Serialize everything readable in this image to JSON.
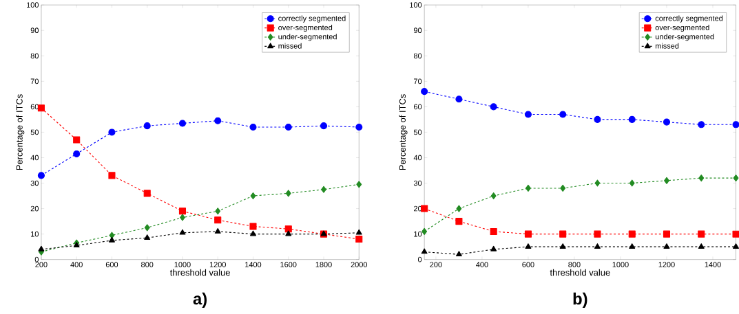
{
  "chart_data": [
    {
      "type": "line",
      "xlabel": "threshold value",
      "ylabel": "Percentage of ITCs",
      "annotations": [
        "a)"
      ],
      "x": [
        200,
        400,
        600,
        800,
        1000,
        1200,
        1400,
        1600,
        1800,
        2000
      ],
      "xlim": [
        200,
        2000
      ],
      "xticks": [
        200,
        400,
        600,
        800,
        1000,
        1200,
        1400,
        1600,
        1800,
        2000
      ],
      "ylim": [
        0,
        100
      ],
      "yticks": [
        0,
        10,
        20,
        30,
        40,
        50,
        60,
        70,
        80,
        90,
        100
      ],
      "legend": "top right",
      "grid": false,
      "line_style": "dashed",
      "series": [
        {
          "name": "correctly segmented",
          "color": "#0000ff",
          "marker": "circle",
          "values": [
            33,
            41.5,
            50,
            52.5,
            53.5,
            54.5,
            52,
            52,
            52.5,
            52
          ]
        },
        {
          "name": "over-segmented",
          "color": "#ff0000",
          "marker": "square",
          "values": [
            59.5,
            47,
            33,
            26,
            19,
            15.5,
            13,
            12,
            10,
            8
          ]
        },
        {
          "name": "under-segmented",
          "color": "#228b22",
          "marker": "diamond",
          "values": [
            3,
            6.5,
            9.5,
            12.5,
            16.5,
            19,
            25,
            26,
            27.5,
            29.5
          ]
        },
        {
          "name": "missed",
          "color": "#000000",
          "marker": "triangle",
          "values": [
            4,
            5.5,
            7.5,
            8.5,
            10.5,
            11,
            10,
            10,
            10,
            10.5
          ]
        }
      ]
    },
    {
      "type": "line",
      "xlabel": "threshold value",
      "ylabel": "Percentage of ITCs",
      "annotations": [
        "b)"
      ],
      "x": [
        150,
        300,
        450,
        600,
        750,
        900,
        1050,
        1200,
        1350,
        1500
      ],
      "xlim": [
        150,
        1500
      ],
      "xticks": [
        200,
        400,
        600,
        800,
        1000,
        1200,
        1400
      ],
      "ylim": [
        0,
        100
      ],
      "yticks": [
        0,
        10,
        20,
        30,
        40,
        50,
        60,
        70,
        80,
        90,
        100
      ],
      "legend": "top right",
      "grid": false,
      "line_style": "dashed",
      "series": [
        {
          "name": "correctly segmented",
          "color": "#0000ff",
          "marker": "circle",
          "values": [
            66,
            63,
            60,
            57,
            57,
            55,
            55,
            54,
            53,
            53
          ]
        },
        {
          "name": "over-segmented",
          "color": "#ff0000",
          "marker": "square",
          "values": [
            20,
            15,
            11,
            10,
            10,
            10,
            10,
            10,
            10,
            10
          ]
        },
        {
          "name": "under-segmented",
          "color": "#228b22",
          "marker": "diamond",
          "values": [
            11,
            20,
            25,
            28,
            28,
            30,
            30,
            31,
            32,
            32
          ]
        },
        {
          "name": "missed",
          "color": "#000000",
          "marker": "triangle",
          "values": [
            3,
            2,
            4,
            5,
            5,
            5,
            5,
            5,
            5,
            5
          ]
        }
      ]
    }
  ]
}
